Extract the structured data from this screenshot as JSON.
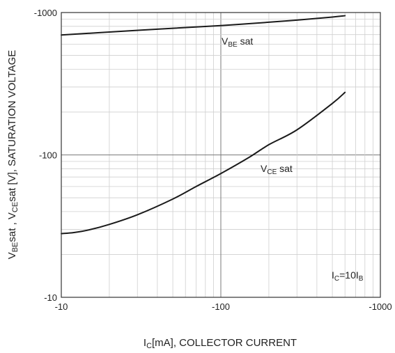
{
  "chart_data": {
    "type": "line",
    "x_scale": "log",
    "y_scale": "log",
    "xlim": [
      -10,
      -1000
    ],
    "ylim": [
      -10,
      -1000
    ],
    "grid": true,
    "x_ticks": [
      "-10",
      "-100",
      "-1000"
    ],
    "y_ticks": [
      "-10",
      "-100",
      "-1000"
    ],
    "xlabel": {
      "base": "I",
      "sub": "C",
      "rest": "[mA], COLLECTOR CURRENT"
    },
    "ylabel": {
      "p1": "V",
      "s1": "BE",
      "p2": "sat  ,  V",
      "s2": "CE",
      "p3": "sat  [V], SATURATION VOLTAGE"
    },
    "series": [
      {
        "label_main": "V",
        "label_sub": "BE",
        "label_rest": " sat",
        "x": [
          -10,
          -20,
          -50,
          -100,
          -200,
          -300,
          -500,
          -600
        ],
        "y": [
          -695,
          -730,
          -775,
          -810,
          -855,
          -885,
          -930,
          -950
        ],
        "color": "#1a1a1a"
      },
      {
        "label_main": "V",
        "label_sub": "CE",
        "label_rest": " sat",
        "x": [
          -10,
          -12,
          -15,
          -20,
          -30,
          -50,
          -70,
          -100,
          -150,
          -200,
          -300,
          -500,
          -600
        ],
        "y": [
          -28,
          -28.5,
          -29.8,
          -32.5,
          -38,
          -49,
          -60,
          -74,
          -96,
          -118,
          -150,
          -230,
          -275
        ],
        "color": "#1a1a1a"
      }
    ],
    "condition": {
      "p1": "I",
      "s1": "C",
      "p2": "=10I",
      "s2": "B"
    }
  }
}
